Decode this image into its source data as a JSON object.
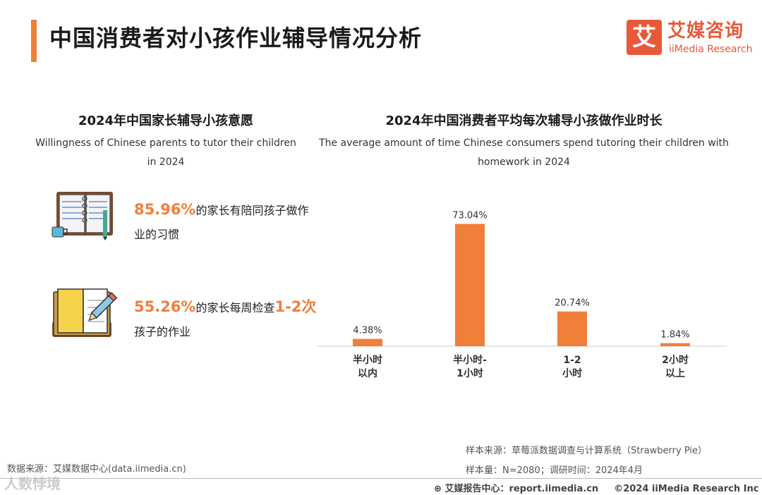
{
  "page": {
    "title": "中国消费者对小孩作业辅导情况分析",
    "logo_cn": "艾媒咨询",
    "logo_en": "iiMedia Research",
    "logo_mark": "艾"
  },
  "left": {
    "title": "2024年中国家长辅导小孩意愿",
    "subtitle_line1": "Willingness of Chinese parents to tutor their children",
    "subtitle_line2": "in 2024",
    "stat1": {
      "value": "85.96%",
      "text1": "的家长有陪同孩子做作",
      "text2": "业的习惯"
    },
    "stat2": {
      "value": "55.26%",
      "text_mid": "的家长每周检查",
      "freq": "1-2次",
      "text2": "孩子的作业"
    }
  },
  "right": {
    "title": "2024年中国消费者平均每次辅导小孩做作业时长",
    "subtitle_line1": "The average amount of time Chinese consumers spend tutoring their children with",
    "subtitle_line2": "homework in 2024"
  },
  "chart_data": {
    "type": "bar",
    "categories": [
      [
        "半小时",
        "以内"
      ],
      [
        "半小时-",
        "1小时"
      ],
      [
        "1-2",
        "小时"
      ],
      [
        "2小时",
        "以上"
      ]
    ],
    "values": [
      4.38,
      73.04,
      20.74,
      1.84
    ],
    "value_labels": [
      "4.38%",
      "73.04%",
      "20.74%",
      "1.84%"
    ],
    "title": "2024年中国消费者平均每次辅导小孩做作业时长",
    "ylim": [
      0,
      80
    ],
    "bar_color": "#f07f3a",
    "grid": false
  },
  "footer": {
    "source_left": "数据来源：艾媒数据中心(data.iimedia.cn)",
    "sample_source": "样本来源：草莓派数据调查与计算系统（Strawberry Pie）",
    "sample_size": "样本量：N=2080；调研时间：2024年4月",
    "report_center": "艾媒报告中心：report.iimedia.cn",
    "copyright": "©2024  iiMedia Research  Inc",
    "watermark": "人数悖境"
  },
  "colors": {
    "accent": "#f07f3a",
    "brand": "#e8593a"
  }
}
